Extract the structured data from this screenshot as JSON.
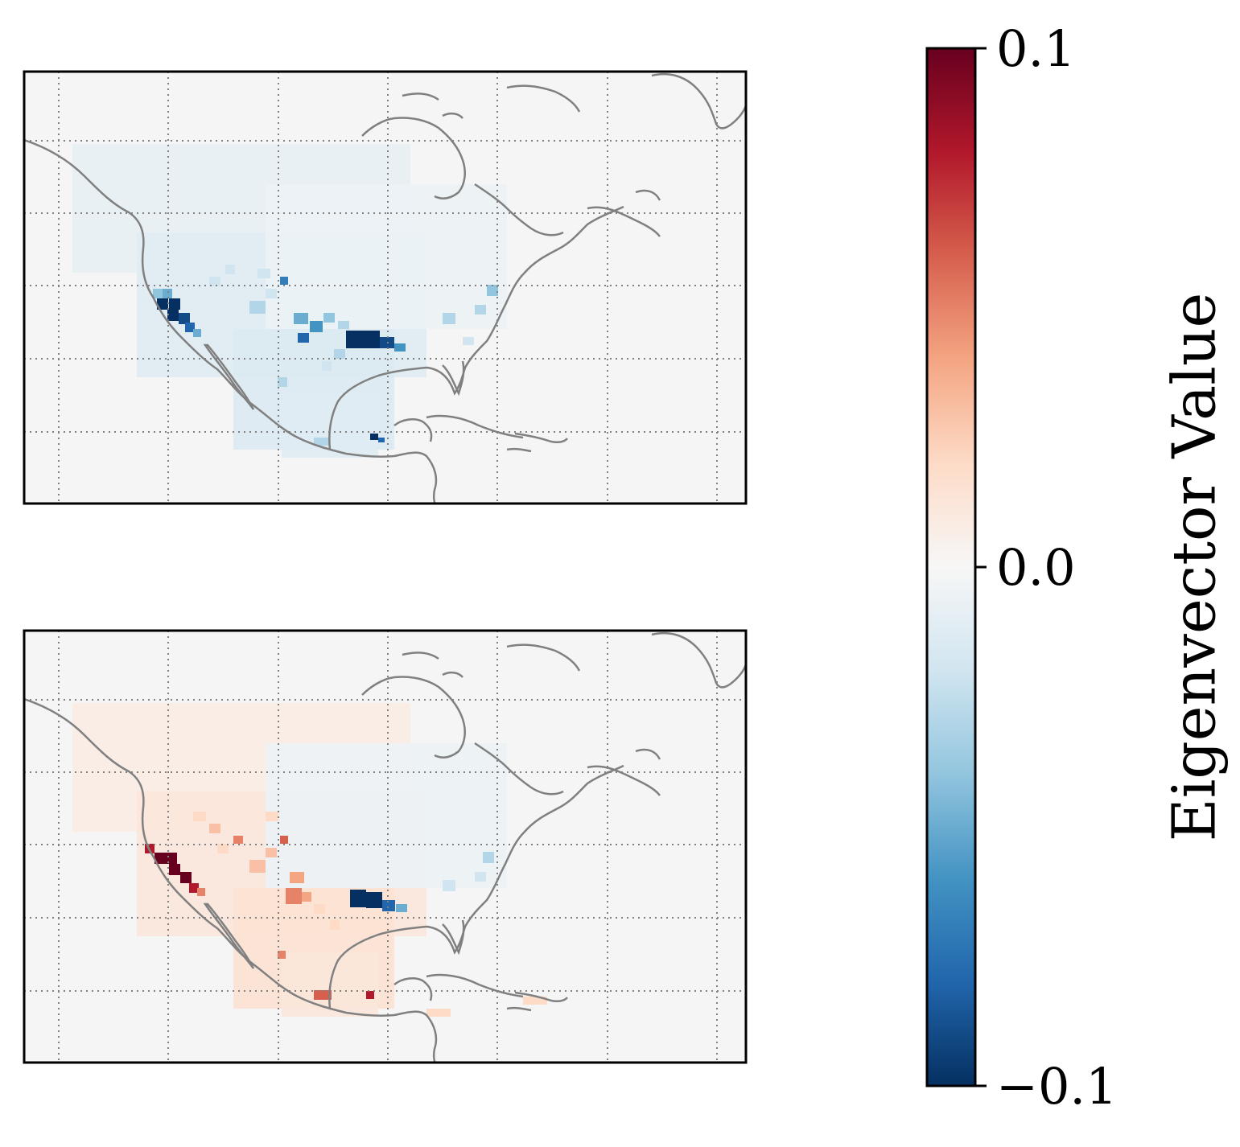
{
  "colorbar": {
    "label": "Eigenvector Value",
    "ticks": [
      {
        "value": 0.1,
        "label": "0.1"
      },
      {
        "value": 0.0,
        "label": "0.0"
      },
      {
        "value": -0.1,
        "label": "−0.1"
      }
    ],
    "range": [
      -0.1,
      0.1
    ],
    "colormap": "RdBu_r",
    "stops": [
      "#053061",
      "#2166ac",
      "#4393c3",
      "#92c5de",
      "#d1e5f0",
      "#f7f7f7",
      "#fddbc7",
      "#f4a582",
      "#d6604d",
      "#b2182b",
      "#67001f"
    ]
  },
  "colors": {
    "coastline": "#808080",
    "gridline": "#808080",
    "ocean_background": "#f5f5f5",
    "frame": "#000000"
  },
  "maps": [
    {
      "id": "top",
      "description_sign": "negative",
      "hotspots": [
        {
          "region": "California coast",
          "value": -0.1
        },
        {
          "region": "Louisiana / lower Mississippi",
          "value": -0.1
        },
        {
          "region": "Southern Mexico",
          "value": -0.09
        },
        {
          "region": "Texas interior",
          "value": -0.05
        },
        {
          "region": "Southwest US",
          "value": -0.03
        },
        {
          "region": "US Southeast coast",
          "value": -0.03
        }
      ]
    },
    {
      "id": "bottom",
      "description_sign": "mixed",
      "hotspots": [
        {
          "region": "California coast",
          "value": 0.1
        },
        {
          "region": "Louisiana / lower Mississippi",
          "value": -0.1
        },
        {
          "region": "Southern Mexico",
          "value": 0.07
        },
        {
          "region": "Texas interior",
          "value": 0.03
        },
        {
          "region": "Southwest US",
          "value": 0.03
        },
        {
          "region": "US Southeast coast",
          "value": -0.02
        }
      ]
    }
  ]
}
